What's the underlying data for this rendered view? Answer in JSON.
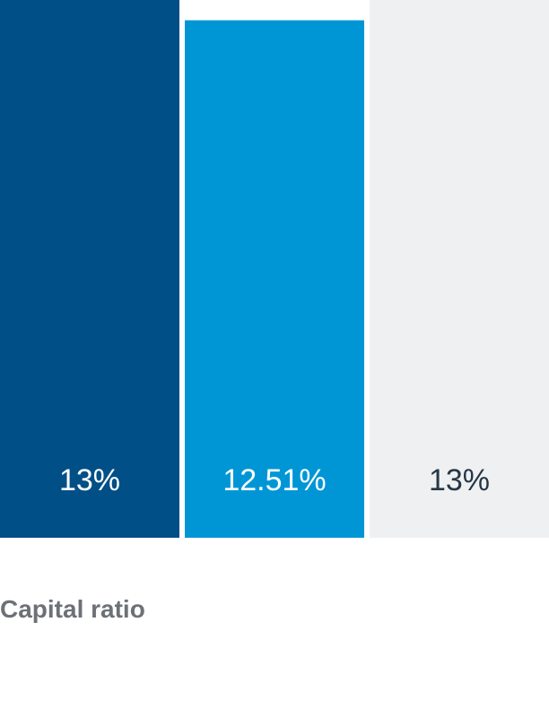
{
  "chart_data": {
    "type": "bar",
    "title": "Capital ratio",
    "categories": [
      "",
      "",
      ""
    ],
    "values": [
      13,
      12.51,
      13
    ],
    "data_labels": [
      "13%",
      "12.51%",
      "13%"
    ],
    "ylim": [
      0,
      13
    ],
    "grid": false,
    "legend": "none",
    "colors": [
      "#004f86",
      "#0096d6",
      "#eff0f2"
    ],
    "label_colors": [
      "#ffffff",
      "#ffffff",
      "#263746"
    ]
  }
}
